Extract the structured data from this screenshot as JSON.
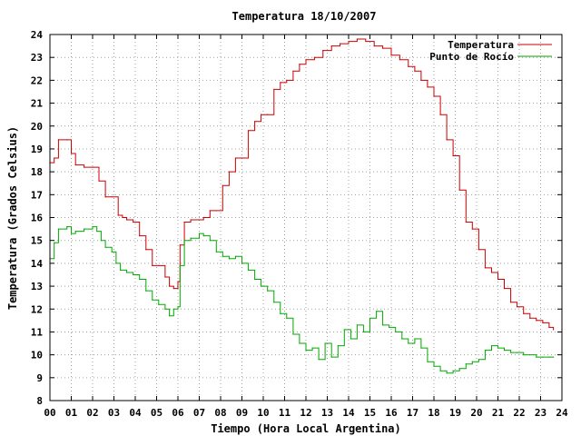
{
  "chart_data": {
    "type": "line",
    "title": "Temperatura 18/10/2007",
    "xlabel": "Tiempo (Hora Local Argentina)",
    "ylabel": "Temperatura (Grados Celsius)",
    "xlim": [
      0,
      24
    ],
    "ylim": [
      8,
      24
    ],
    "x_tick_labels": [
      "00",
      "01",
      "02",
      "03",
      "04",
      "05",
      "06",
      "07",
      "08",
      "09",
      "10",
      "11",
      "12",
      "13",
      "14",
      "15",
      "16",
      "17",
      "18",
      "19",
      "20",
      "21",
      "22",
      "23",
      "24"
    ],
    "y_ticks": [
      8,
      9,
      10,
      11,
      12,
      13,
      14,
      15,
      16,
      17,
      18,
      19,
      20,
      21,
      22,
      23,
      24
    ],
    "grid": true,
    "legend_position": "top-right",
    "series": [
      {
        "name": "Temperatura",
        "color": "#cc0000",
        "x": [
          0.0,
          0.2,
          0.4,
          0.8,
          1.0,
          1.2,
          1.6,
          2.0,
          2.3,
          2.6,
          2.9,
          3.2,
          3.4,
          3.6,
          3.9,
          4.2,
          4.5,
          4.8,
          5.1,
          5.4,
          5.6,
          5.8,
          6.0,
          6.1,
          6.3,
          6.6,
          7.0,
          7.2,
          7.5,
          7.8,
          8.1,
          8.4,
          8.7,
          9.0,
          9.3,
          9.6,
          9.9,
          10.2,
          10.5,
          10.8,
          11.1,
          11.4,
          11.7,
          12.0,
          12.4,
          12.8,
          13.2,
          13.6,
          14.0,
          14.4,
          14.8,
          15.2,
          15.6,
          16.0,
          16.4,
          16.8,
          17.1,
          17.4,
          17.7,
          18.0,
          18.3,
          18.6,
          18.9,
          19.2,
          19.5,
          19.8,
          20.1,
          20.4,
          20.7,
          21.0,
          21.3,
          21.6,
          21.9,
          22.2,
          22.5,
          22.8,
          23.1,
          23.4,
          23.6
        ],
        "values": [
          18.4,
          18.6,
          19.4,
          19.4,
          18.8,
          18.3,
          18.2,
          18.2,
          17.6,
          16.9,
          16.9,
          16.1,
          16.0,
          15.9,
          15.8,
          15.2,
          14.6,
          13.9,
          13.9,
          13.4,
          13.0,
          12.9,
          13.2,
          14.8,
          15.8,
          15.9,
          15.9,
          16.0,
          16.3,
          16.3,
          17.4,
          18.0,
          18.6,
          18.6,
          19.8,
          20.2,
          20.5,
          20.5,
          21.6,
          21.9,
          22.0,
          22.4,
          22.7,
          22.9,
          23.0,
          23.3,
          23.5,
          23.6,
          23.7,
          23.8,
          23.7,
          23.5,
          23.4,
          23.1,
          22.9,
          22.6,
          22.4,
          22.0,
          21.7,
          21.3,
          20.5,
          19.4,
          18.7,
          17.2,
          15.8,
          15.5,
          14.6,
          13.8,
          13.6,
          13.3,
          12.9,
          12.3,
          12.1,
          11.8,
          11.6,
          11.5,
          11.4,
          11.2,
          11.1
        ]
      },
      {
        "name": "Punto de Rocío",
        "color": "#00aa00",
        "x": [
          0.0,
          0.2,
          0.4,
          0.8,
          1.0,
          1.2,
          1.6,
          2.0,
          2.2,
          2.4,
          2.6,
          2.9,
          3.1,
          3.3,
          3.6,
          3.9,
          4.2,
          4.5,
          4.8,
          5.1,
          5.4,
          5.6,
          5.8,
          6.0,
          6.1,
          6.3,
          6.6,
          7.0,
          7.2,
          7.5,
          7.8,
          8.1,
          8.4,
          8.7,
          9.0,
          9.3,
          9.6,
          9.9,
          10.2,
          10.5,
          10.8,
          11.1,
          11.4,
          11.7,
          12.0,
          12.3,
          12.6,
          12.9,
          13.2,
          13.5,
          13.8,
          14.1,
          14.4,
          14.7,
          15.0,
          15.3,
          15.6,
          15.9,
          16.2,
          16.5,
          16.8,
          17.1,
          17.4,
          17.7,
          18.0,
          18.3,
          18.6,
          18.9,
          19.2,
          19.5,
          19.8,
          20.1,
          20.4,
          20.7,
          21.0,
          21.3,
          21.6,
          21.9,
          22.2,
          22.5,
          22.8,
          23.1,
          23.4,
          23.6
        ],
        "values": [
          14.2,
          14.9,
          15.5,
          15.6,
          15.3,
          15.4,
          15.5,
          15.6,
          15.4,
          15.0,
          14.7,
          14.5,
          14.0,
          13.7,
          13.6,
          13.5,
          13.3,
          12.8,
          12.4,
          12.2,
          12.0,
          11.7,
          12.0,
          12.1,
          13.9,
          15.0,
          15.1,
          15.3,
          15.2,
          15.0,
          14.5,
          14.3,
          14.2,
          14.3,
          14.0,
          13.7,
          13.3,
          13.0,
          12.8,
          12.3,
          11.8,
          11.6,
          10.9,
          10.5,
          10.2,
          10.3,
          9.8,
          10.5,
          9.9,
          10.4,
          11.1,
          10.7,
          11.3,
          11.0,
          11.6,
          11.9,
          11.3,
          11.2,
          11.0,
          10.7,
          10.5,
          10.7,
          10.3,
          9.7,
          9.5,
          9.3,
          9.2,
          9.3,
          9.4,
          9.6,
          9.7,
          9.8,
          10.2,
          10.4,
          10.3,
          10.2,
          10.1,
          10.1,
          10.0,
          10.0,
          9.9,
          9.9,
          9.9,
          9.9
        ]
      }
    ]
  }
}
